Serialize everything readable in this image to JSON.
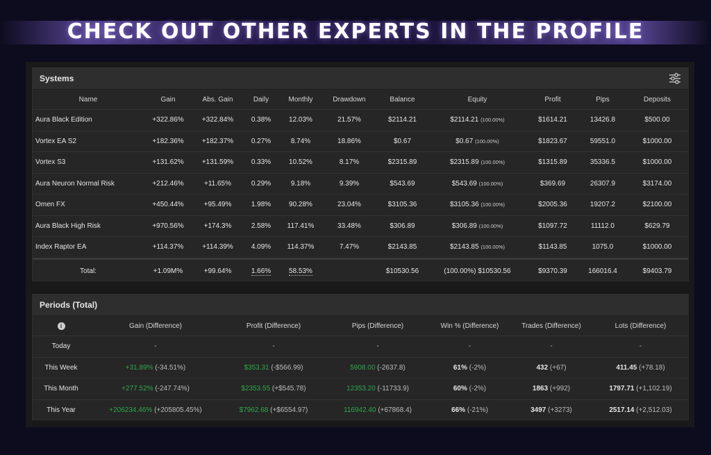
{
  "banner": {
    "title": "CHECK OUT OTHER EXPERTS IN THE PROFILE"
  },
  "systems": {
    "title": "Systems",
    "columns": [
      "Name",
      "Gain",
      "Abs. Gain",
      "Daily",
      "Monthly",
      "Drawdown",
      "Balance",
      "Equity",
      "Profit",
      "Pips",
      "Deposits"
    ],
    "rows": [
      {
        "name": "Aura Black Edition",
        "gain": "+322.86%",
        "abs_gain": "+322.84%",
        "daily": "0.38%",
        "monthly": "12.03%",
        "drawdown": "21.57%",
        "balance": "$2114.21",
        "equity": "$2114.21",
        "equity_pct": "(100.00%)",
        "profit": "$1614.21",
        "pips": "13426.8",
        "deposits": "$500.00"
      },
      {
        "name": "Vortex EA S2",
        "gain": "+182.36%",
        "abs_gain": "+182.37%",
        "daily": "0.27%",
        "monthly": "8.74%",
        "drawdown": "18.86%",
        "balance": "$0.67",
        "equity": "$0.67",
        "equity_pct": "(100.00%)",
        "profit": "$1823.67",
        "pips": "59551.0",
        "deposits": "$1000.00"
      },
      {
        "name": "Vortex S3",
        "gain": "+131.62%",
        "abs_gain": "+131.59%",
        "daily": "0.33%",
        "monthly": "10.52%",
        "drawdown": "8.17%",
        "balance": "$2315.89",
        "equity": "$2315.89",
        "equity_pct": "(100.00%)",
        "profit": "$1315.89",
        "pips": "35336.5",
        "deposits": "$1000.00"
      },
      {
        "name": "Aura Neuron Normal Risk",
        "gain": "+212.46%",
        "abs_gain": "+11.65%",
        "daily": "0.29%",
        "monthly": "9.18%",
        "drawdown": "9.39%",
        "balance": "$543.69",
        "equity": "$543.69",
        "equity_pct": "(100.00%)",
        "profit": "$369.69",
        "pips": "26307.9",
        "deposits": "$3174.00"
      },
      {
        "name": "Omen FX",
        "gain": "+450.44%",
        "abs_gain": "+95.49%",
        "daily": "1.98%",
        "monthly": "90.28%",
        "drawdown": "23.04%",
        "balance": "$3105.36",
        "equity": "$3105.36",
        "equity_pct": "(100.00%)",
        "profit": "$2005.36",
        "pips": "19207.2",
        "deposits": "$2100.00"
      },
      {
        "name": "Aura Black High Risk",
        "gain": "+970.56%",
        "abs_gain": "+174.3%",
        "daily": "2.58%",
        "monthly": "117.41%",
        "drawdown": "33.48%",
        "balance": "$306.89",
        "equity": "$306.89",
        "equity_pct": "(100.00%)",
        "profit": "$1097.72",
        "pips": "11112.0",
        "deposits": "$629.79"
      },
      {
        "name": "Index Raptor EA",
        "gain": "+114.37%",
        "abs_gain": "+114.39%",
        "daily": "4.09%",
        "monthly": "114.37%",
        "drawdown": "7.47%",
        "balance": "$2143.85",
        "equity": "$2143.85",
        "equity_pct": "(100.00%)",
        "profit": "$1143.85",
        "pips": "1075.0",
        "deposits": "$1000.00"
      }
    ],
    "total": {
      "label": "Total:",
      "gain": "+1.09M%",
      "abs_gain": "+99.64%",
      "daily": "1.66%",
      "monthly": "58.53%",
      "drawdown": "",
      "balance": "$10530.56",
      "equity": "(100.00%) $10530.56",
      "profit": "$9370.39",
      "pips": "166016.4",
      "deposits": "$9403.79"
    }
  },
  "periods": {
    "title": "Periods (Total)",
    "columns": [
      "Gain (Difference)",
      "Profit (Difference)",
      "Pips (Difference)",
      "Win % (Difference)",
      "Trades (Difference)",
      "Lots (Difference)"
    ],
    "rows": [
      {
        "label": "Today",
        "gain": "-",
        "gain_diff": "",
        "profit": "-",
        "profit_diff": "",
        "pips": "-",
        "pips_diff": "",
        "win": "-",
        "win_diff": "",
        "trades": "-",
        "trades_diff": "",
        "lots": "-",
        "lots_diff": ""
      },
      {
        "label": "This Week",
        "gain": "+31.89%",
        "gain_diff": "(-34.51%)",
        "profit": "$353.31",
        "profit_diff": "(-$566.99)",
        "pips": "5908.00",
        "pips_diff": "(-2637.8)",
        "win": "61%",
        "win_diff": "(-2%)",
        "trades": "432",
        "trades_diff": "(+67)",
        "lots": "411.45",
        "lots_diff": "(+78.18)"
      },
      {
        "label": "This Month",
        "gain": "+277.52%",
        "gain_diff": "(-247.74%)",
        "profit": "$2353.55",
        "profit_diff": "(+$545.78)",
        "pips": "12353.20",
        "pips_diff": "(-11733.9)",
        "win": "60%",
        "win_diff": "(-2%)",
        "trades": "1863",
        "trades_diff": "(+992)",
        "lots": "1797.71",
        "lots_diff": "(+1,102.19)"
      },
      {
        "label": "This Year",
        "gain": "+206234.46%",
        "gain_diff": "(+205805.45%)",
        "profit": "$7962.68",
        "profit_diff": "(+$6554.97)",
        "pips": "116942.40",
        "pips_diff": "(+67868.4)",
        "win": "66%",
        "win_diff": "(-21%)",
        "trades": "3497",
        "trades_diff": "(+3273)",
        "lots": "2517.14",
        "lots_diff": "(+2,512.03)"
      }
    ]
  },
  "colors": {
    "positive": "#2ea84c",
    "background": "#0d0b1e",
    "panel": "#262626"
  },
  "icons": {
    "filter": "sliders-icon",
    "info": "info-icon"
  }
}
